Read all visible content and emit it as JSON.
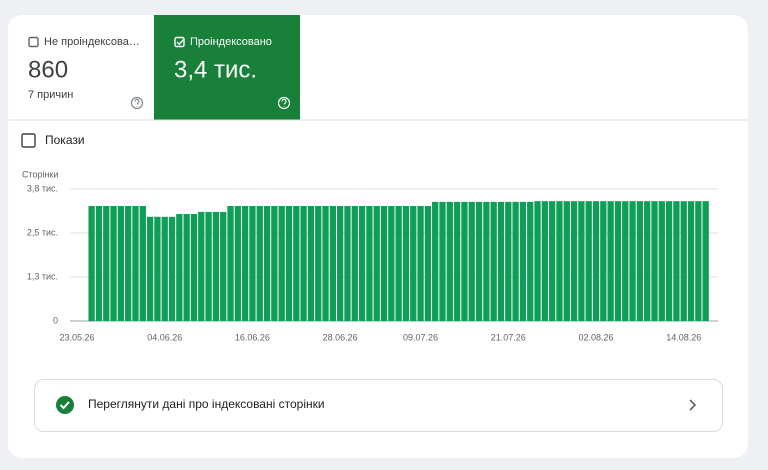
{
  "tabs": [
    {
      "label": "Не проіндексова…",
      "value": 860,
      "subtitle": "7 причин",
      "checked": false
    },
    {
      "label": "Проіндексовано",
      "value": "3,4 тис.",
      "checked": true
    }
  ],
  "impressions_toggle": {
    "label": "Покази",
    "checked": false
  },
  "chart_data": {
    "type": "bar",
    "y_axis_label": "Сторінки",
    "color": "#0f9d58",
    "grid": true,
    "categories": [
      "23.05.26",
      null,
      null,
      null,
      null,
      null,
      null,
      null,
      null,
      null,
      null,
      null,
      "04.06.26",
      null,
      null,
      null,
      null,
      null,
      null,
      null,
      null,
      null,
      null,
      null,
      "16.06.26",
      null,
      null,
      null,
      null,
      null,
      null,
      null,
      null,
      null,
      null,
      null,
      "28.06.26",
      null,
      null,
      null,
      null,
      null,
      null,
      null,
      null,
      null,
      null,
      "09.07.26",
      null,
      null,
      null,
      null,
      null,
      null,
      null,
      null,
      null,
      null,
      null,
      "21.07.26",
      null,
      null,
      null,
      null,
      null,
      null,
      null,
      null,
      null,
      null,
      null,
      "02.08.26",
      null,
      null,
      null,
      null,
      null,
      null,
      null,
      null,
      null,
      null,
      null,
      "14.08.26",
      null,
      null,
      null
    ],
    "values": [
      null,
      null,
      3310,
      3310,
      3310,
      3310,
      3310,
      3310,
      3310,
      3310,
      3000,
      3000,
      3000,
      3000,
      3080,
      3080,
      3080,
      3140,
      3140,
      3140,
      3140,
      3310,
      3310,
      3310,
      3310,
      3310,
      3310,
      3310,
      3310,
      3310,
      3310,
      3310,
      3310,
      3310,
      3310,
      3310,
      3310,
      3310,
      3310,
      3310,
      3310,
      3310,
      3310,
      3310,
      3310,
      3310,
      3310,
      3310,
      3310,
      3430,
      3430,
      3430,
      3430,
      3430,
      3430,
      3430,
      3430,
      3430,
      3430,
      3430,
      3430,
      3430,
      3430,
      3450,
      3450,
      3450,
      3450,
      3450,
      3450,
      3450,
      3450,
      3450,
      3450,
      3450,
      3450,
      3450,
      3450,
      3450,
      3450,
      3450,
      3450,
      3450,
      3450,
      3450,
      3450,
      3450,
      3450
    ],
    "ylim": [
      0,
      3800
    ],
    "yticks": [
      0,
      {
        "value": 1267,
        "label": "1,3 тис."
      },
      {
        "value": 2533,
        "label": "2,5 тис."
      },
      {
        "value": 3800,
        "label": "3,8 тис."
      }
    ]
  },
  "link": {
    "label": "Переглянути дані про індексовані сторінки"
  }
}
